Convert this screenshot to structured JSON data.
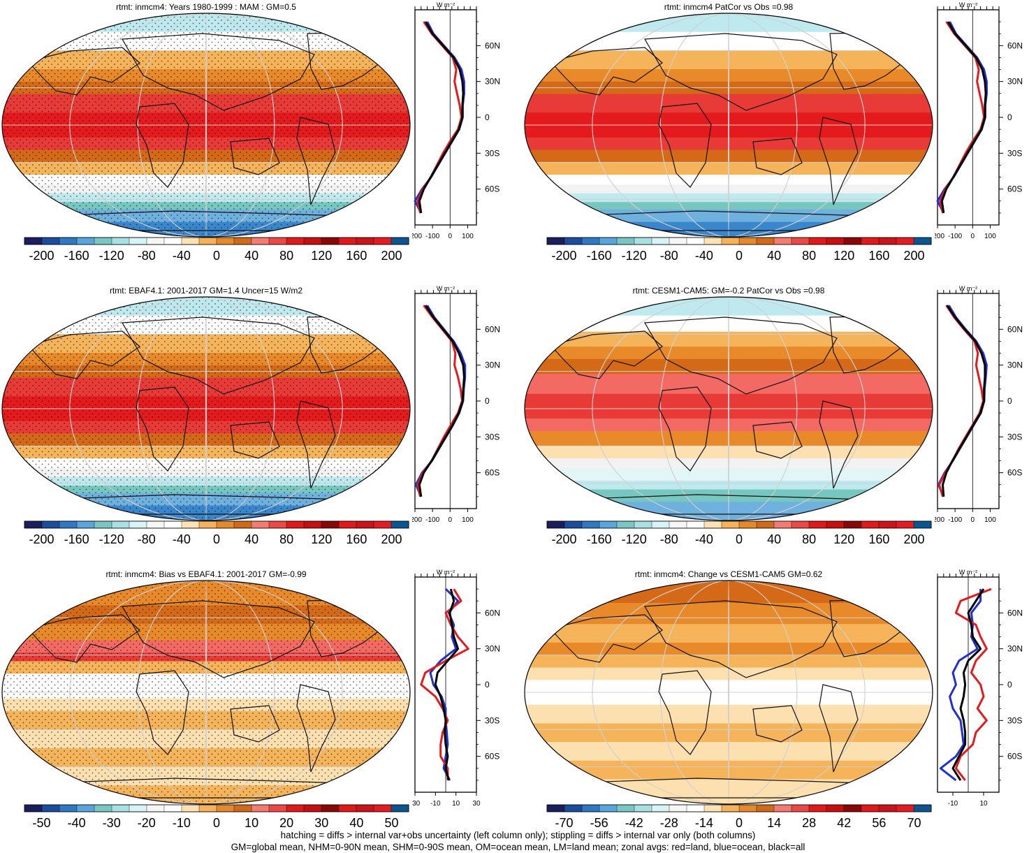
{
  "palettes": {
    "fill13": [
      "#1a2a80",
      "#1f5fb0",
      "#3a86cc",
      "#6eb0de",
      "#78c6c0",
      "#bde9ef",
      "#e2f6f8",
      "#f2f2f2",
      "#ffffff",
      "#fde0b0",
      "#f5b45a",
      "#e8892a",
      "#d46a17",
      "#f26a63",
      "#e83a36",
      "#e41a1c",
      "#b30d0d",
      "#7a0505"
    ],
    "bar": [
      "#1a1d5e",
      "#1c4d9a",
      "#2f79c2",
      "#5aa5dc",
      "#79c6c4",
      "#a9e0e3",
      "#d6f3f6",
      "#f6f6f6",
      "#ffffff",
      "#fde2b6",
      "#f6b25b",
      "#e58a2c",
      "#cf6a1a",
      "#f27b72",
      "#ea4a45",
      "#e01a1a",
      "#c41010",
      "#8a0707",
      "#e01a1a",
      "#c8141a",
      "#e31c24",
      "#0c5590"
    ]
  },
  "chart_data": [
    {
      "type": "map-with-zonal-profile",
      "id": "p1",
      "title": "rtmt: inmcm4: Years 1980-1999 : MAM : GM=0.5",
      "colorbar_ticks": [
        "-200",
        "-160",
        "-120",
        "-80",
        "-40",
        "0",
        "40",
        "80",
        "120",
        "160",
        "200"
      ],
      "colorbar_range": [
        -200,
        200
      ],
      "profile": {
        "unit": "W m⁻²",
        "xlim": [
          -200,
          150
        ],
        "xticks": [
          "-200",
          "-100",
          "0",
          "100"
        ],
        "xtick_values": [
          -200,
          -100,
          0,
          100
        ],
        "ylabels": [
          "60N",
          "30N",
          "0",
          "30S",
          "60S"
        ],
        "lat": [
          80,
          70,
          60,
          50,
          40,
          30,
          20,
          10,
          0,
          -10,
          -20,
          -30,
          -40,
          -50,
          -60,
          -70,
          -80
        ],
        "series": [
          {
            "name": "all",
            "color": "#000000",
            "values": [
              -140,
              -100,
              -40,
              20,
              55,
              70,
              75,
              70,
              70,
              50,
              10,
              -30,
              -70,
              -110,
              -150,
              -175,
              -165
            ]
          },
          {
            "name": "land",
            "color": "#e41a1c",
            "values": [
              -150,
              -105,
              -45,
              15,
              35,
              25,
              40,
              55,
              65,
              45,
              0,
              -40,
              -75,
              -110,
              -155,
              -185,
              -170
            ]
          },
          {
            "name": "ocean",
            "color": "#1f2fd0",
            "values": [
              -130,
              -95,
              -35,
              25,
              65,
              80,
              80,
              72,
              72,
              52,
              12,
              -28,
              -68,
              -108,
              -160,
              -200,
              -165
            ]
          }
        ]
      }
    },
    {
      "type": "map-with-zonal-profile",
      "id": "p2",
      "title": "rtmt: inmcm4 PatCor vs Obs =0.98",
      "colorbar_ticks": [
        "-200",
        "-160",
        "-120",
        "-80",
        "-40",
        "0",
        "40",
        "80",
        "120",
        "160",
        "200"
      ],
      "colorbar_range": [
        -200,
        200
      ],
      "profile": {
        "unit": "W m⁻²",
        "xlim": [
          -200,
          150
        ],
        "xticks": [
          "-200",
          "-100",
          "0",
          "100"
        ],
        "xtick_values": [
          -200,
          -100,
          0,
          100
        ],
        "ylabels": [
          "60N",
          "30N",
          "0",
          "30S",
          "60S"
        ],
        "lat": [
          80,
          70,
          60,
          50,
          40,
          30,
          20,
          10,
          0,
          -10,
          -20,
          -30,
          -40,
          -50,
          -60,
          -70,
          -80
        ],
        "series": [
          {
            "name": "all",
            "color": "#000000",
            "values": [
              -140,
              -100,
              -40,
              20,
              55,
              70,
              75,
              70,
              70,
              50,
              10,
              -30,
              -70,
              -110,
              -150,
              -175,
              -165
            ]
          },
          {
            "name": "land",
            "color": "#e41a1c",
            "values": [
              -150,
              -105,
              -45,
              15,
              35,
              25,
              40,
              55,
              65,
              45,
              0,
              -40,
              -75,
              -110,
              -155,
              -185,
              -170
            ]
          },
          {
            "name": "ocean",
            "color": "#1f2fd0",
            "values": [
              -130,
              -95,
              -35,
              25,
              65,
              80,
              80,
              72,
              72,
              52,
              12,
              -28,
              -68,
              -108,
              -160,
              -200,
              -165
            ]
          }
        ]
      }
    },
    {
      "type": "map-with-zonal-profile",
      "id": "p3",
      "title": "rtmt: EBAF4.1: 2001-2017 GM=1.4 Uncer=15 W/m2",
      "colorbar_ticks": [
        "-200",
        "-160",
        "-120",
        "-80",
        "-40",
        "0",
        "40",
        "80",
        "120",
        "160",
        "200"
      ],
      "colorbar_range": [
        -200,
        200
      ],
      "profile": {
        "unit": "W m⁻²",
        "xlim": [
          -200,
          150
        ],
        "xticks": [
          "-200",
          "-100",
          "0",
          "100"
        ],
        "xtick_values": [
          -200,
          -100,
          0,
          100
        ],
        "ylabels": [
          "60N",
          "30N",
          "0",
          "30S",
          "60S"
        ],
        "lat": [
          80,
          70,
          60,
          50,
          40,
          30,
          20,
          10,
          0,
          -10,
          -20,
          -30,
          -40,
          -50,
          -60,
          -70,
          -80
        ],
        "series": [
          {
            "name": "all",
            "color": "#000000",
            "values": [
              -140,
              -95,
              -40,
              15,
              50,
              75,
              80,
              75,
              72,
              50,
              15,
              -25,
              -65,
              -105,
              -150,
              -175,
              -165
            ]
          },
          {
            "name": "land",
            "color": "#e41a1c",
            "values": [
              -150,
              -100,
              -45,
              10,
              30,
              25,
              45,
              60,
              68,
              45,
              5,
              -35,
              -70,
              -105,
              -155,
              -185,
              -170
            ]
          },
          {
            "name": "ocean",
            "color": "#1f2fd0",
            "values": [
              -130,
              -90,
              -35,
              20,
              60,
              85,
              85,
              78,
              74,
              52,
              17,
              -23,
              -63,
              -103,
              -160,
              -195,
              -165
            ]
          }
        ]
      }
    },
    {
      "type": "map-with-zonal-profile",
      "id": "p4",
      "title": "rtmt: CESM1-CAM5: GM=-0.2 PatCor vs Obs =0.98",
      "colorbar_ticks": [
        "-200",
        "-160",
        "-120",
        "-80",
        "-40",
        "0",
        "40",
        "80",
        "120",
        "160",
        "200"
      ],
      "colorbar_range": [
        -200,
        200
      ],
      "profile": {
        "unit": "W m⁻²",
        "xlim": [
          -200,
          150
        ],
        "xticks": [
          "-200",
          "-100",
          "0",
          "100"
        ],
        "xtick_values": [
          -200,
          -100,
          0,
          100
        ],
        "ylabels": [
          "60N",
          "30N",
          "0",
          "30S",
          "60S"
        ],
        "lat": [
          80,
          70,
          60,
          50,
          40,
          30,
          20,
          10,
          0,
          -10,
          -20,
          -30,
          -40,
          -50,
          -60,
          -70,
          -80
        ],
        "series": [
          {
            "name": "all",
            "color": "#000000",
            "values": [
              -145,
              -100,
              -45,
              15,
              50,
              70,
              70,
              65,
              65,
              45,
              5,
              -35,
              -75,
              -115,
              -150,
              -170,
              -165
            ]
          },
          {
            "name": "land",
            "color": "#e41a1c",
            "values": [
              -150,
              -105,
              -50,
              10,
              30,
              20,
              35,
              50,
              60,
              40,
              0,
              -40,
              -80,
              -115,
              -155,
              -190,
              -170
            ]
          },
          {
            "name": "ocean",
            "color": "#1f2fd0",
            "values": [
              -135,
              -95,
              -40,
              20,
              60,
              80,
              75,
              68,
              66,
              47,
              7,
              -33,
              -73,
              -113,
              -160,
              -195,
              -165
            ]
          }
        ]
      }
    },
    {
      "type": "map-with-zonal-profile",
      "id": "p5",
      "title": "rtmt: inmcm4: Bias vs EBAF4.1: 2001-2017 GM=-0.99",
      "colorbar_ticks": [
        "-50",
        "-40",
        "-30",
        "-20",
        "-10",
        "0",
        "10",
        "20",
        "30",
        "40",
        "50"
      ],
      "colorbar_range": [
        -50,
        50
      ],
      "profile": {
        "unit": "W m⁻²",
        "xlim": [
          -30,
          30
        ],
        "xticks": [
          "-30",
          "-10",
          "10",
          "30"
        ],
        "xtick_values": [
          -30,
          -10,
          10,
          30
        ],
        "ylabels": [
          "60N",
          "30N",
          "0",
          "30S",
          "60S"
        ],
        "lat": [
          80,
          70,
          60,
          50,
          40,
          30,
          20,
          10,
          0,
          -10,
          -20,
          -30,
          -40,
          -50,
          -60,
          -70,
          -80
        ],
        "series": [
          {
            "name": "all",
            "color": "#000000",
            "values": [
              5,
              8,
              4,
              6,
              8,
              12,
              2,
              -8,
              -10,
              -5,
              -2,
              0,
              -1,
              0,
              2,
              0,
              3
            ]
          },
          {
            "name": "land",
            "color": "#e41a1c",
            "values": [
              8,
              15,
              0,
              5,
              12,
              22,
              0,
              -20,
              -24,
              -10,
              -3,
              2,
              -3,
              -5,
              -5,
              2,
              2
            ]
          },
          {
            "name": "ocean",
            "color": "#1f2fd0",
            "values": [
              0,
              12,
              3,
              8,
              6,
              10,
              -5,
              -15,
              -12,
              -4,
              0,
              0,
              1,
              2,
              0,
              -2,
              4
            ]
          }
        ]
      }
    },
    {
      "type": "map-with-zonal-profile",
      "id": "p6",
      "title": "rtmt: inmcm4: Change vs CESM1-CAM5 GM=0.62",
      "colorbar_ticks": [
        "-70",
        "-56",
        "-42",
        "-28",
        "-14",
        "0",
        "14",
        "28",
        "42",
        "56",
        "70"
      ],
      "colorbar_range": [
        -70,
        70
      ],
      "profile": {
        "unit": "W m⁻²",
        "xlim": [
          -20,
          20
        ],
        "xticks": [
          "-10",
          "10"
        ],
        "xtick_values": [
          -10,
          10
        ],
        "ylabels": [
          "60N",
          "30N",
          "0",
          "30S",
          "60S"
        ],
        "lat": [
          80,
          70,
          60,
          50,
          40,
          30,
          20,
          10,
          0,
          -10,
          -20,
          -30,
          -40,
          -50,
          -60,
          -70,
          -80
        ],
        "series": [
          {
            "name": "all",
            "color": "#000000",
            "values": [
              10,
              5,
              0,
              2,
              3,
              8,
              0,
              -3,
              -2,
              -3,
              -5,
              -3,
              -2,
              -2,
              -6,
              -10,
              -5
            ]
          },
          {
            "name": "land",
            "color": "#e41a1c",
            "values": [
              15,
              -5,
              -8,
              5,
              8,
              12,
              5,
              2,
              8,
              10,
              6,
              12,
              5,
              3,
              -5,
              -8,
              -2
            ]
          },
          {
            "name": "ocean",
            "color": "#1f2fd0",
            "values": [
              8,
              8,
              2,
              3,
              2,
              6,
              -6,
              -10,
              -8,
              -12,
              -10,
              -5,
              -4,
              -3,
              -8,
              -18,
              -8
            ]
          }
        ]
      }
    }
  ],
  "footer": {
    "line1": "hatching = diffs > internal var+obs uncertainty (left column only); stippling = diffs > internal var only (both columns)",
    "line2": "GM=global mean, NHM=0-90N mean, SHM=0-90S mean, OM=ocean mean, LM=land mean; zonal avgs: red=land, blue=ocean, black=all"
  }
}
